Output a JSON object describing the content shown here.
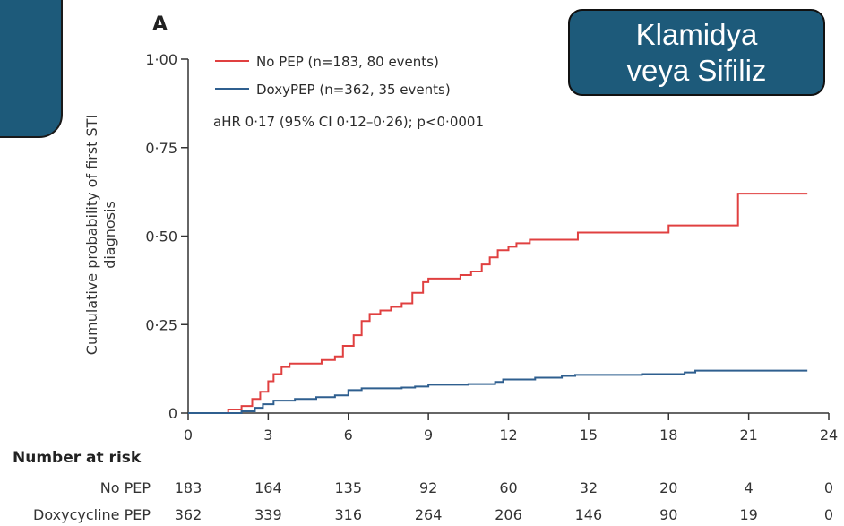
{
  "overlay": {
    "line1": "Klamidya",
    "line2": "veya Sifiliz"
  },
  "chart_data": {
    "type": "line",
    "panel_label": "A",
    "ylabel_line1": "Cumulative probability of first STI",
    "ylabel_line2": "diagnosis",
    "ylim": [
      0,
      1.0
    ],
    "xlim": [
      0,
      24
    ],
    "x_ticks": [
      0,
      3,
      6,
      9,
      12,
      15,
      18,
      21,
      24
    ],
    "y_ticks": [
      0,
      0.25,
      0.5,
      0.75,
      1.0
    ],
    "y_tick_labels": [
      "0",
      "0·25",
      "0·50",
      "0·75",
      "1·00"
    ],
    "annotation": "aHR 0·17 (95% CI 0·12–0·26); p<0·0001",
    "colors": {
      "no_pep": "#e04040",
      "doxy_pep": "#2f5f8f"
    },
    "series": [
      {
        "name": "No PEP (n=183, 80 events)",
        "color": "#e04040",
        "points": [
          [
            0,
            0
          ],
          [
            1,
            0
          ],
          [
            1.5,
            0.01
          ],
          [
            2,
            0.02
          ],
          [
            2.4,
            0.04
          ],
          [
            2.7,
            0.06
          ],
          [
            3,
            0.09
          ],
          [
            3.2,
            0.11
          ],
          [
            3.5,
            0.13
          ],
          [
            3.8,
            0.14
          ],
          [
            4.5,
            0.14
          ],
          [
            5,
            0.15
          ],
          [
            5.5,
            0.16
          ],
          [
            5.8,
            0.19
          ],
          [
            6.2,
            0.22
          ],
          [
            6.5,
            0.26
          ],
          [
            6.8,
            0.28
          ],
          [
            7.2,
            0.29
          ],
          [
            7.6,
            0.3
          ],
          [
            8,
            0.31
          ],
          [
            8.4,
            0.34
          ],
          [
            8.8,
            0.37
          ],
          [
            9,
            0.38
          ],
          [
            9.8,
            0.38
          ],
          [
            10.2,
            0.39
          ],
          [
            10.6,
            0.4
          ],
          [
            11,
            0.42
          ],
          [
            11.3,
            0.44
          ],
          [
            11.6,
            0.46
          ],
          [
            12,
            0.47
          ],
          [
            12.3,
            0.48
          ],
          [
            12.8,
            0.49
          ],
          [
            14,
            0.49
          ],
          [
            14.6,
            0.51
          ],
          [
            17.9,
            0.51
          ],
          [
            18,
            0.53
          ],
          [
            20.5,
            0.53
          ],
          [
            20.6,
            0.62
          ],
          [
            23.2,
            0.62
          ]
        ]
      },
      {
        "name": "DoxyPEP (n=362, 35 events)",
        "color": "#2f5f8f",
        "points": [
          [
            0,
            0
          ],
          [
            1,
            0
          ],
          [
            2,
            0.005
          ],
          [
            2.5,
            0.015
          ],
          [
            2.8,
            0.025
          ],
          [
            3.2,
            0.035
          ],
          [
            4,
            0.04
          ],
          [
            4.8,
            0.045
          ],
          [
            5.5,
            0.05
          ],
          [
            6,
            0.065
          ],
          [
            6.5,
            0.07
          ],
          [
            8,
            0.072
          ],
          [
            8.5,
            0.075
          ],
          [
            9,
            0.08
          ],
          [
            10.5,
            0.082
          ],
          [
            11.5,
            0.088
          ],
          [
            11.8,
            0.095
          ],
          [
            13,
            0.1
          ],
          [
            14,
            0.105
          ],
          [
            14.5,
            0.108
          ],
          [
            17,
            0.11
          ],
          [
            18.6,
            0.115
          ],
          [
            19,
            0.12
          ],
          [
            23.2,
            0.12
          ]
        ]
      }
    ],
    "risk_table": {
      "title": "Number at risk",
      "rows": [
        {
          "label": "No PEP",
          "values": [
            "183",
            "164",
            "135",
            "92",
            "60",
            "32",
            "20",
            "4",
            "0"
          ]
        },
        {
          "label": "Doxycycline PEP",
          "values": [
            "362",
            "339",
            "316",
            "264",
            "206",
            "146",
            "90",
            "19",
            "0"
          ]
        }
      ]
    }
  }
}
